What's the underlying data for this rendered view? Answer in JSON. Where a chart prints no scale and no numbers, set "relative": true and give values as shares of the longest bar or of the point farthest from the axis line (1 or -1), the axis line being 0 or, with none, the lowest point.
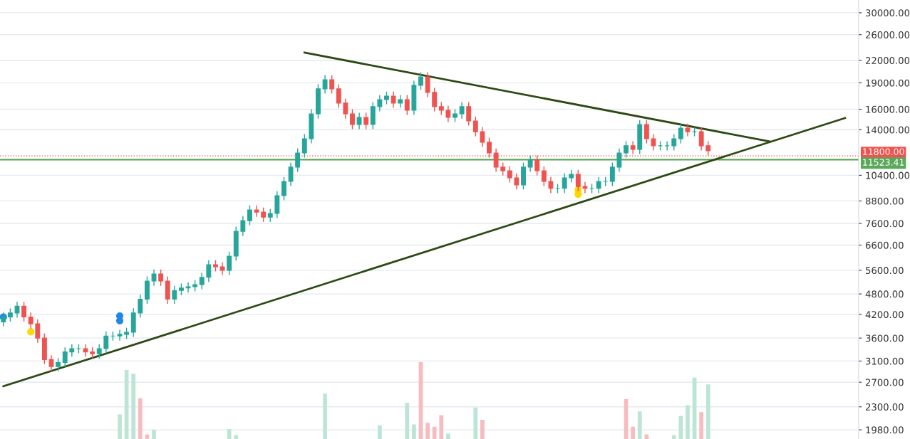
{
  "chart_data": [
    {
      "type": "candlestick",
      "log": "y",
      "grid": "y",
      "tick_labels": "y",
      "categories": [
        null,
        null,
        null,
        null,
        null,
        null,
        null,
        null,
        null,
        null,
        null,
        null,
        null,
        null,
        null,
        null,
        null,
        null,
        null,
        null,
        null,
        null,
        null,
        null,
        null,
        null,
        null,
        null,
        null,
        null,
        null,
        null,
        null,
        null,
        null,
        null,
        null,
        null,
        null,
        null,
        null,
        null,
        null,
        null,
        null,
        null,
        null,
        null,
        null,
        null,
        null,
        null,
        null,
        null,
        null,
        null,
        null,
        null,
        null,
        null,
        null,
        null,
        null,
        null,
        null,
        null,
        null,
        null,
        null,
        null,
        null,
        null,
        null,
        null,
        null,
        null,
        null,
        null,
        null,
        null,
        null,
        null,
        null,
        null,
        null,
        null,
        null,
        null,
        null,
        null,
        null,
        null,
        null,
        null,
        null,
        null,
        null,
        null,
        null,
        null,
        null,
        null,
        null,
        null,
        null,
        null,
        null,
        null,
        null,
        null,
        null,
        null,
        null,
        null,
        null,
        null,
        null,
        null,
        null,
        null,
        null,
        null,
        null,
        null
      ],
      "ohlc": [
        [
          4000,
          4250,
          3880,
          4130
        ],
        [
          4130,
          4370,
          4010,
          4240
        ],
        [
          4240,
          4560,
          4110,
          4430
        ],
        [
          4430,
          4560,
          4010,
          4130
        ],
        [
          4130,
          4250,
          3830,
          3950
        ],
        [
          3950,
          4070,
          3490,
          3600
        ],
        [
          3600,
          3710,
          3040,
          3130
        ],
        [
          3130,
          3220,
          2900,
          2990
        ],
        [
          2990,
          3160,
          2900,
          3070
        ],
        [
          3070,
          3390,
          2980,
          3290
        ],
        [
          3290,
          3460,
          3190,
          3360
        ],
        [
          3360,
          3460,
          3260,
          3360
        ],
        [
          3360,
          3460,
          3190,
          3290
        ],
        [
          3290,
          3390,
          3150,
          3250
        ],
        [
          3250,
          3460,
          3150,
          3360
        ],
        [
          3360,
          3760,
          3260,
          3650
        ],
        [
          3650,
          3760,
          3540,
          3650
        ],
        [
          3650,
          3800,
          3540,
          3690
        ],
        [
          3690,
          3850,
          3580,
          3740
        ],
        [
          3740,
          4370,
          3630,
          4240
        ],
        [
          4240,
          4780,
          4110,
          4640
        ],
        [
          4640,
          5380,
          4500,
          5220
        ],
        [
          5220,
          5630,
          5060,
          5470
        ],
        [
          5470,
          5630,
          5060,
          5220
        ],
        [
          5220,
          5380,
          4500,
          4640
        ],
        [
          4640,
          5060,
          4500,
          4910
        ],
        [
          4910,
          5140,
          4760,
          4990
        ],
        [
          4990,
          5180,
          4840,
          5030
        ],
        [
          5030,
          5250,
          4880,
          5100
        ],
        [
          5100,
          5510,
          4950,
          5350
        ],
        [
          5350,
          5980,
          5190,
          5810
        ],
        [
          5810,
          5980,
          5560,
          5730
        ],
        [
          5730,
          5900,
          5430,
          5600
        ],
        [
          5600,
          6320,
          5430,
          6140
        ],
        [
          6140,
          7440,
          5960,
          7220
        ],
        [
          7220,
          7970,
          7000,
          7740
        ],
        [
          7740,
          8550,
          7510,
          8300
        ],
        [
          8300,
          8550,
          7930,
          8180
        ],
        [
          8180,
          8430,
          7680,
          7920
        ],
        [
          7920,
          8350,
          7680,
          8110
        ],
        [
          8110,
          9380,
          7870,
          9110
        ],
        [
          9110,
          10290,
          8840,
          9990
        ],
        [
          9990,
          11300,
          9690,
          10970
        ],
        [
          10970,
          12390,
          10640,
          12030
        ],
        [
          12030,
          13600,
          11670,
          13200
        ],
        [
          13200,
          15990,
          12800,
          15520
        ],
        [
          15520,
          18820,
          15050,
          18270
        ],
        [
          18270,
          19980,
          17720,
          19400
        ],
        [
          19400,
          19980,
          17720,
          18270
        ],
        [
          18270,
          18820,
          16150,
          16650
        ],
        [
          16650,
          17150,
          15050,
          15520
        ],
        [
          15520,
          15990,
          14050,
          14480
        ],
        [
          14480,
          15630,
          14050,
          15170
        ],
        [
          15170,
          15630,
          14050,
          14480
        ],
        [
          14480,
          16760,
          14050,
          16270
        ],
        [
          16270,
          17540,
          15780,
          17030
        ],
        [
          17030,
          17950,
          16520,
          17430
        ],
        [
          17430,
          17950,
          16150,
          16650
        ],
        [
          16650,
          17540,
          16150,
          17030
        ],
        [
          17030,
          17540,
          15410,
          15890
        ],
        [
          15890,
          19260,
          15410,
          18700
        ],
        [
          18700,
          20350,
          18140,
          19760
        ],
        [
          19760,
          20350,
          17310,
          17850
        ],
        [
          17850,
          18390,
          15780,
          16270
        ],
        [
          16270,
          16760,
          15410,
          15890
        ],
        [
          15890,
          16370,
          14710,
          15170
        ],
        [
          15170,
          15990,
          14710,
          15520
        ],
        [
          15520,
          16760,
          15050,
          16270
        ],
        [
          16270,
          16760,
          14380,
          14820
        ],
        [
          14820,
          15260,
          13410,
          13820
        ],
        [
          13820,
          14230,
          12510,
          12900
        ],
        [
          12900,
          13290,
          11670,
          12030
        ],
        [
          12030,
          12390,
          10640,
          10970
        ],
        [
          10970,
          11300,
          10390,
          10710
        ],
        [
          10710,
          11030,
          9920,
          10230
        ],
        [
          10230,
          10540,
          9480,
          9770
        ],
        [
          9770,
          11300,
          9480,
          10970
        ],
        [
          10970,
          11830,
          10640,
          11490
        ],
        [
          11490,
          11830,
          10390,
          10710
        ],
        [
          10710,
          11030,
          9690,
          9990
        ],
        [
          9990,
          10290,
          9260,
          9550
        ],
        [
          9550,
          9840,
          9260,
          9550
        ],
        [
          9550,
          10540,
          9260,
          10230
        ],
        [
          10230,
          10780,
          9920,
          10470
        ],
        [
          10470,
          10780,
          9380,
          9670
        ],
        [
          9670,
          9960,
          9260,
          9550
        ],
        [
          9550,
          9840,
          9260,
          9550
        ],
        [
          9550,
          10290,
          9260,
          9990
        ],
        [
          9990,
          10290,
          9690,
          9990
        ],
        [
          9990,
          11300,
          9690,
          10970
        ],
        [
          10970,
          12390,
          10640,
          12030
        ],
        [
          12030,
          12990,
          11670,
          12610
        ],
        [
          12610,
          12990,
          11940,
          12310
        ],
        [
          12310,
          14910,
          11940,
          14480
        ],
        [
          14480,
          14910,
          12800,
          13200
        ],
        [
          13200,
          13600,
          12230,
          12610
        ],
        [
          12610,
          12990,
          12230,
          12610
        ],
        [
          12610,
          12990,
          12230,
          12610
        ],
        [
          12610,
          13600,
          12230,
          13200
        ],
        [
          13200,
          14570,
          12800,
          14150
        ],
        [
          14150,
          14570,
          13410,
          13820
        ],
        [
          13820,
          14230,
          13410,
          13820
        ],
        [
          13820,
          14230,
          12230,
          12610
        ],
        [
          12610,
          12990,
          11830,
          12200
        ],
        null,
        null,
        null,
        null,
        null,
        null,
        null,
        null,
        null,
        null,
        null,
        null,
        null,
        null,
        null,
        null,
        null,
        null,
        null,
        null
      ],
      "colors": [
        "#26a69a",
        "#26a69a",
        "#26a69a",
        "#ef5350",
        "#ef5350",
        "#ef5350",
        "#ef5350",
        "#ef5350",
        "#26a69a",
        "#26a69a",
        "#26a69a",
        "#26a69a",
        "#ef5350",
        "#ef5350",
        "#26a69a",
        "#26a69a",
        "#26a69a",
        "#26a69a",
        "#26a69a",
        "#26a69a",
        "#26a69a",
        "#26a69a",
        "#26a69a",
        "#ef5350",
        "#ef5350",
        "#26a69a",
        "#26a69a",
        "#26a69a",
        "#26a69a",
        "#26a69a",
        "#26a69a",
        "#ef5350",
        "#ef5350",
        "#26a69a",
        "#26a69a",
        "#26a69a",
        "#26a69a",
        "#ef5350",
        "#ef5350",
        "#26a69a",
        "#26a69a",
        "#26a69a",
        "#26a69a",
        "#26a69a",
        "#26a69a",
        "#26a69a",
        "#26a69a",
        "#26a69a",
        "#ef5350",
        "#ef5350",
        "#ef5350",
        "#ef5350",
        "#26a69a",
        "#ef5350",
        "#26a69a",
        "#26a69a",
        "#26a69a",
        "#ef5350",
        "#26a69a",
        "#ef5350",
        "#26a69a",
        "#26a69a",
        "#ef5350",
        "#ef5350",
        "#ef5350",
        "#ef5350",
        "#26a69a",
        "#26a69a",
        "#ef5350",
        "#ef5350",
        "#ef5350",
        "#ef5350",
        "#ef5350",
        "#ef5350",
        "#ef5350",
        "#ef5350",
        "#26a69a",
        "#26a69a",
        "#ef5350",
        "#ef5350",
        "#ef5350",
        "#26a69a",
        "#26a69a",
        "#26a69a",
        "#ef5350",
        "#ef5350",
        "#26a69a",
        "#26a69a",
        "#26a69a",
        "#26a69a",
        "#26a69a",
        "#26a69a",
        "#ef5350",
        "#26a69a",
        "#ef5350",
        "#ef5350",
        "#26a69a",
        "#26a69a",
        "#26a69a",
        "#26a69a",
        "#ef5350",
        "#26a69a",
        "#ef5350",
        "#ef5350",
        null,
        null,
        null,
        null,
        null,
        null,
        null,
        null,
        null,
        null,
        null,
        null,
        null,
        null,
        null,
        null,
        null,
        null,
        null,
        null
      ],
      "series": [
        {
          "type": "line",
          "color": "#2d4a14",
          "values": [
            null,
            null,
            null,
            null,
            null,
            null,
            null,
            null,
            null,
            null,
            null,
            null,
            null,
            null,
            null,
            null,
            null,
            null,
            null,
            null,
            null,
            null,
            null,
            null,
            null,
            null,
            null,
            null,
            null,
            null,
            null,
            null,
            null,
            null,
            null,
            null,
            null,
            null,
            null,
            null,
            null,
            null,
            null,
            null,
            23140,
            null,
            null,
            null,
            null,
            null,
            null,
            null,
            null,
            null,
            null,
            null,
            null,
            null,
            null,
            null,
            null,
            null,
            null,
            null,
            null,
            null,
            null,
            null,
            null,
            null,
            null,
            null,
            null,
            null,
            null,
            null,
            null,
            null,
            null,
            null,
            null,
            null,
            null,
            null,
            null,
            null,
            null,
            null,
            null,
            null,
            null,
            null,
            null,
            null,
            null,
            null,
            null,
            null,
            null,
            null,
            null,
            null,
            null,
            null,
            null,
            null,
            null,
            null,
            null,
            null,
            null,
            null,
            12960,
            null,
            null,
            null,
            null,
            null,
            null,
            null,
            null,
            null,
            null,
            null
          ]
        },
        {
          "type": "line",
          "color": "#2d4a14",
          "values": [
            2630,
            null,
            null,
            null,
            null,
            null,
            null,
            null,
            null,
            null,
            null,
            null,
            null,
            null,
            null,
            null,
            null,
            null,
            null,
            null,
            null,
            null,
            null,
            null,
            null,
            null,
            null,
            null,
            null,
            null,
            null,
            null,
            null,
            null,
            null,
            null,
            null,
            null,
            null,
            null,
            null,
            null,
            null,
            null,
            null,
            null,
            null,
            null,
            null,
            null,
            null,
            null,
            null,
            null,
            null,
            null,
            null,
            null,
            null,
            null,
            null,
            null,
            null,
            null,
            null,
            null,
            null,
            null,
            null,
            null,
            null,
            null,
            null,
            null,
            null,
            null,
            null,
            null,
            null,
            null,
            null,
            null,
            null,
            null,
            null,
            null,
            null,
            null,
            null,
            null,
            null,
            null,
            null,
            null,
            null,
            null,
            null,
            null,
            null,
            null,
            null,
            null,
            null,
            null,
            null,
            null,
            null,
            null,
            null,
            null,
            null,
            null,
            null,
            null,
            null,
            null,
            null,
            null,
            null,
            null,
            null,
            null,
            null,
            15100
          ]
        },
        {
          "type": "scatter",
          "color": "#1e88e5",
          "values": [
            4130,
            null,
            null,
            null,
            null,
            null,
            null,
            null,
            null,
            null,
            null,
            null,
            null,
            null,
            null,
            null,
            null,
            4160,
            null,
            null,
            null,
            null,
            null,
            null,
            null,
            null,
            null,
            null,
            null,
            null,
            null,
            null,
            null,
            null,
            null,
            null,
            null,
            null,
            null,
            null,
            null,
            null,
            null,
            null,
            null,
            null,
            null,
            null,
            null,
            null,
            null,
            null,
            null,
            null,
            null,
            null,
            null,
            null,
            null,
            null,
            null,
            null,
            null,
            null,
            null,
            null,
            null,
            null,
            null,
            null,
            null,
            null,
            null,
            null,
            null,
            null,
            null,
            null,
            null,
            null,
            null,
            null,
            null,
            null,
            null,
            null,
            null,
            null,
            null,
            null,
            null,
            null,
            null,
            null,
            null,
            null,
            null,
            null,
            null,
            null,
            null,
            null,
            null,
            null,
            null,
            null,
            null,
            null,
            null,
            null,
            null,
            null,
            null,
            null,
            null,
            null,
            null,
            null,
            null,
            null,
            null,
            null,
            null,
            null
          ]
        },
        {
          "type": "scatter",
          "color": "#1e88e5",
          "values": [
            null,
            null,
            null,
            null,
            null,
            null,
            null,
            null,
            null,
            null,
            null,
            null,
            null,
            null,
            null,
            null,
            null,
            4030,
            null,
            null,
            null,
            null,
            null,
            null,
            null,
            null,
            null,
            null,
            null,
            null,
            null,
            null,
            null,
            null,
            null,
            null,
            null,
            null,
            null,
            null,
            null,
            null,
            null,
            null,
            null,
            null,
            null,
            null,
            null,
            null,
            null,
            null,
            null,
            null,
            null,
            null,
            null,
            null,
            null,
            null,
            null,
            null,
            null,
            null,
            null,
            null,
            null,
            null,
            null,
            null,
            null,
            null,
            null,
            null,
            null,
            null,
            null,
            null,
            null,
            null,
            null,
            null,
            null,
            null,
            null,
            null,
            null,
            null,
            null,
            null,
            null,
            null,
            null,
            null,
            null,
            null,
            null,
            null,
            null,
            null,
            null,
            null,
            null,
            null,
            null,
            null,
            null,
            null,
            null,
            null,
            null,
            null,
            null,
            null,
            null,
            null,
            null,
            null,
            null,
            null,
            null,
            null,
            null,
            null
          ]
        },
        {
          "type": "scatter",
          "color": "#ffd600",
          "values": [
            null,
            null,
            null,
            null,
            3750,
            null,
            null,
            null,
            null,
            null,
            null,
            null,
            null,
            null,
            null,
            null,
            null,
            null,
            null,
            null,
            null,
            null,
            null,
            null,
            null,
            null,
            null,
            null,
            null,
            null,
            null,
            null,
            null,
            null,
            null,
            null,
            null,
            null,
            null,
            null,
            null,
            null,
            null,
            null,
            null,
            null,
            null,
            null,
            null,
            null,
            null,
            null,
            null,
            null,
            null,
            null,
            null,
            null,
            null,
            null,
            null,
            null,
            null,
            null,
            null,
            null,
            null,
            null,
            null,
            null,
            null,
            null,
            null,
            null,
            null,
            null,
            null,
            null,
            null,
            null,
            null,
            null,
            null,
            null,
            9460,
            null,
            null,
            null,
            null,
            null,
            null,
            null,
            null,
            null,
            null,
            null,
            null,
            null,
            null,
            null,
            null,
            null,
            null,
            null,
            null,
            null,
            null,
            null,
            null,
            null,
            null,
            null,
            null,
            null,
            null,
            null,
            null,
            null,
            null,
            null,
            null,
            null,
            null,
            null
          ]
        },
        {
          "type": "scatter",
          "color": "#ffd600",
          "values": [
            null,
            null,
            null,
            null,
            null,
            null,
            null,
            null,
            null,
            null,
            null,
            null,
            null,
            null,
            null,
            null,
            null,
            null,
            null,
            null,
            null,
            null,
            null,
            null,
            null,
            null,
            null,
            null,
            null,
            null,
            null,
            null,
            null,
            null,
            null,
            null,
            null,
            null,
            null,
            null,
            null,
            null,
            null,
            null,
            null,
            null,
            null,
            null,
            null,
            null,
            null,
            null,
            null,
            null,
            null,
            null,
            null,
            null,
            null,
            null,
            null,
            null,
            null,
            null,
            null,
            null,
            null,
            null,
            null,
            null,
            null,
            null,
            null,
            null,
            null,
            null,
            null,
            null,
            null,
            null,
            null,
            null,
            null,
            null,
            9190,
            null,
            null,
            null,
            null,
            null,
            null,
            null,
            null,
            null,
            null,
            null,
            null,
            null,
            null,
            null,
            null,
            null,
            null,
            null,
            null,
            null,
            null,
            null,
            null,
            null,
            null,
            null,
            null,
            null,
            null,
            null,
            null,
            null,
            null,
            null,
            null,
            null,
            null,
            null
          ]
        }
      ],
      "ref_lines": [
        {
          "axis": "y",
          "value": 11800,
          "label": "11800.00",
          "color": "#ef5350",
          "line_style": "dotted"
        },
        {
          "axis": "y",
          "value": 11523.41,
          "label": "11523.41",
          "color": "#5aa85a",
          "line_style": "solid"
        }
      ],
      "ylim": [
        1865,
        32600
      ],
      "yticks": [
        {
          "value": 30000,
          "label": "30000.00"
        },
        {
          "value": 26000,
          "label": "26000.00"
        },
        {
          "value": 22000,
          "label": "22000.00"
        },
        {
          "value": 19000,
          "label": "19000.00"
        },
        {
          "value": 16000,
          "label": "16000.00"
        },
        {
          "value": 14000,
          "label": "14000.00"
        },
        {
          "value": 10400,
          "label": "10400.00"
        },
        {
          "value": 8800,
          "label": "8800.00"
        },
        {
          "value": 7600,
          "label": "7600.00"
        },
        {
          "value": 6600,
          "label": "6600.00"
        },
        {
          "value": 5600,
          "label": "5600.00"
        },
        {
          "value": 4800,
          "label": "4800.00"
        },
        {
          "value": 4200,
          "label": "4200.00"
        },
        {
          "value": 3600,
          "label": "3600.00"
        },
        {
          "value": 3100,
          "label": "3100.00"
        },
        {
          "value": 2700,
          "label": "2700.00"
        },
        {
          "value": 2300,
          "label": "2300.00"
        },
        {
          "value": 1980,
          "label": "1980.00"
        }
      ]
    },
    {
      "type": "bar",
      "relative": true,
      "tick_labels": false,
      "categories": [
        null,
        null,
        null,
        null,
        null,
        null,
        null,
        null,
        null,
        null,
        null,
        null,
        null,
        null,
        null,
        null,
        null,
        null,
        null,
        null,
        null,
        null,
        null,
        null,
        null,
        null,
        null,
        null,
        null,
        null,
        null,
        null,
        null,
        null,
        null,
        null,
        null,
        null,
        null,
        null,
        null,
        null,
        null,
        null,
        null,
        null,
        null,
        null,
        null,
        null,
        null,
        null,
        null,
        null,
        null,
        null,
        null,
        null,
        null,
        null,
        null,
        null,
        null,
        null,
        null,
        null,
        null,
        null,
        null,
        null,
        null,
        null,
        null,
        null,
        null,
        null,
        null,
        null,
        null,
        null,
        null,
        null,
        null,
        null,
        null,
        null,
        null,
        null,
        null,
        null,
        null,
        null,
        null,
        null,
        null,
        null,
        null,
        null,
        null,
        null,
        null,
        null,
        null,
        null,
        null,
        null,
        null,
        null,
        null,
        null,
        null,
        null,
        null,
        null,
        null,
        null,
        null,
        null,
        null,
        null,
        null,
        null,
        null,
        null
      ],
      "values": [
        null,
        null,
        null,
        null,
        null,
        null,
        null,
        null,
        null,
        null,
        null,
        null,
        null,
        null,
        null,
        null,
        null,
        0.32,
        0.9,
        0.85,
        0.53,
        0.06,
        0.12,
        null,
        null,
        null,
        null,
        null,
        null,
        null,
        null,
        null,
        null,
        0.13,
        0.05,
        null,
        null,
        null,
        null,
        null,
        null,
        null,
        null,
        null,
        null,
        null,
        null,
        0.59,
        null,
        null,
        null,
        null,
        null,
        null,
        null,
        0.18,
        null,
        null,
        null,
        0.47,
        0.19,
        1.0,
        0.21,
        0.16,
        0.31,
        0.07,
        null,
        null,
        null,
        0.41,
        0.25,
        null,
        null,
        null,
        null,
        null,
        null,
        null,
        null,
        null,
        null,
        null,
        null,
        null,
        null,
        null,
        null,
        null,
        null,
        null,
        null,
        0.52,
        0.16,
        0.36,
        0.06,
        null,
        null,
        null,
        0.05,
        0.3,
        0.44,
        0.8,
        0.35,
        0.71,
        null,
        null,
        null,
        null,
        null,
        null,
        null,
        null,
        null,
        null,
        null,
        null,
        null,
        null,
        null,
        null,
        null,
        null,
        null,
        null
      ],
      "colors": [
        null,
        null,
        null,
        null,
        null,
        null,
        null,
        null,
        null,
        null,
        null,
        null,
        null,
        null,
        null,
        null,
        null,
        "#bde5d5",
        "#bde5d5",
        "#bde5d5",
        "#f7bcc0",
        "#f7bcc0",
        "#bde5d5",
        null,
        null,
        null,
        null,
        null,
        null,
        null,
        null,
        null,
        null,
        "#bde5d5",
        "#bde5d5",
        null,
        null,
        null,
        null,
        null,
        null,
        null,
        null,
        null,
        null,
        null,
        null,
        "#bde5d5",
        null,
        null,
        null,
        null,
        null,
        null,
        null,
        "#bde5d5",
        null,
        null,
        null,
        "#bde5d5",
        "#bde5d5",
        "#f7bcc0",
        "#f7bcc0",
        "#f7bcc0",
        "#f7bcc0",
        "#bde5d5",
        null,
        null,
        null,
        "#bde5d5",
        "#f7bcc0",
        null,
        null,
        null,
        null,
        null,
        null,
        null,
        null,
        null,
        null,
        null,
        null,
        null,
        null,
        null,
        null,
        null,
        null,
        null,
        null,
        "#f7bcc0",
        "#f7bcc0",
        "#bde5d5",
        "#f7bcc0",
        null,
        null,
        null,
        "#bde5d5",
        "#bde5d5",
        "#bde5d5",
        "#bde5d5",
        "#f7bcc0",
        "#bde5d5",
        null,
        null,
        null,
        null,
        null,
        null,
        null,
        null,
        null,
        null,
        null,
        null,
        null,
        null,
        null,
        null,
        null,
        null,
        null,
        null
      ]
    }
  ]
}
